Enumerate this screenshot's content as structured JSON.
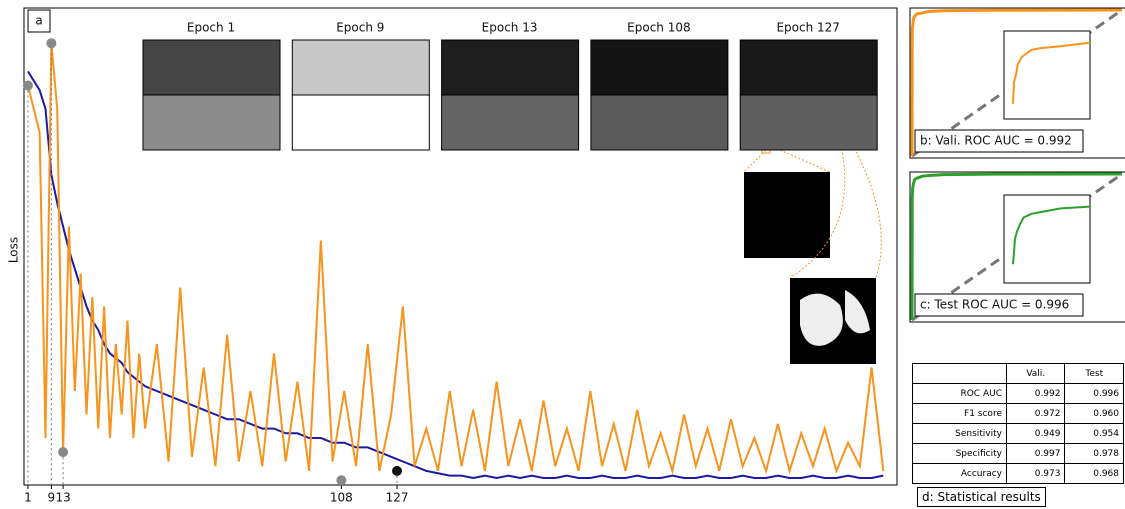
{
  "chart_data": [
    {
      "type": "line",
      "panel_label": "a",
      "y_label": "Loss",
      "x": [
        1,
        3,
        5,
        7,
        9,
        11,
        13,
        15,
        17,
        19,
        21,
        23,
        25,
        27,
        29,
        31,
        33,
        35,
        37,
        39,
        41,
        45,
        49,
        53,
        57,
        61,
        65,
        69,
        73,
        77,
        81,
        85,
        89,
        93,
        97,
        101,
        105,
        109,
        113,
        117,
        121,
        125,
        129,
        133,
        137,
        141,
        145,
        149,
        153,
        157,
        161,
        165,
        169,
        173,
        177,
        181,
        185,
        189,
        193,
        197,
        201,
        205,
        209,
        213,
        217,
        221,
        225,
        229,
        233,
        237,
        241,
        245,
        249,
        253,
        257,
        261,
        265,
        269,
        273,
        277,
        281,
        285,
        289,
        293
      ],
      "series": [
        {
          "color": "#1a1aa6",
          "values": [
            0.88,
            0.86,
            0.84,
            0.8,
            0.66,
            0.6,
            0.55,
            0.5,
            0.46,
            0.42,
            0.38,
            0.35,
            0.33,
            0.3,
            0.28,
            0.27,
            0.26,
            0.24,
            0.23,
            0.22,
            0.21,
            0.2,
            0.19,
            0.18,
            0.17,
            0.16,
            0.15,
            0.14,
            0.14,
            0.13,
            0.12,
            0.12,
            0.11,
            0.11,
            0.1,
            0.1,
            0.09,
            0.09,
            0.08,
            0.08,
            0.07,
            0.06,
            0.05,
            0.04,
            0.03,
            0.025,
            0.02,
            0.02,
            0.015,
            0.02,
            0.015,
            0.02,
            0.015,
            0.02,
            0.015,
            0.015,
            0.02,
            0.015,
            0.015,
            0.02,
            0.015,
            0.015,
            0.02,
            0.015,
            0.015,
            0.02,
            0.015,
            0.015,
            0.02,
            0.015,
            0.015,
            0.02,
            0.015,
            0.015,
            0.02,
            0.015,
            0.015,
            0.02,
            0.015,
            0.015,
            0.02,
            0.015,
            0.015,
            0.02
          ]
        },
        {
          "color": "#f7941d",
          "values": [
            0.85,
            0.8,
            0.75,
            0.1,
            0.94,
            0.8,
            0.07,
            0.55,
            0.2,
            0.45,
            0.15,
            0.4,
            0.12,
            0.38,
            0.1,
            0.3,
            0.15,
            0.35,
            0.1,
            0.28,
            0.12,
            0.3,
            0.05,
            0.42,
            0.06,
            0.25,
            0.04,
            0.32,
            0.05,
            0.2,
            0.04,
            0.28,
            0.05,
            0.22,
            0.03,
            0.52,
            0.05,
            0.2,
            0.04,
            0.3,
            0.03,
            0.15,
            0.38,
            0.04,
            0.12,
            0.03,
            0.2,
            0.04,
            0.16,
            0.03,
            0.22,
            0.04,
            0.14,
            0.03,
            0.18,
            0.04,
            0.12,
            0.03,
            0.2,
            0.04,
            0.13,
            0.03,
            0.16,
            0.04,
            0.11,
            0.03,
            0.15,
            0.04,
            0.12,
            0.03,
            0.14,
            0.04,
            0.1,
            0.03,
            0.13,
            0.03,
            0.11,
            0.04,
            0.12,
            0.03,
            0.09,
            0.04,
            0.25,
            0.03
          ]
        }
      ],
      "markers": [
        {
          "x": 1,
          "y": 0.85,
          "color": "#888888"
        },
        {
          "x": 9,
          "y": 0.94,
          "color": "#888888"
        },
        {
          "x": 13,
          "y": 0.07,
          "color": "#888888"
        },
        {
          "x": 108,
          "y": 0.01,
          "color": "#888888"
        },
        {
          "x": 127,
          "y": 0.03,
          "color": "#111111"
        }
      ],
      "xlim": [
        0,
        297
      ],
      "ylim": [
        0,
        1
      ],
      "xticks": [
        1,
        9,
        13,
        108,
        127
      ],
      "thumbnails": [
        "Epoch 1",
        "Epoch 9",
        "Epoch 13",
        "Epoch 108",
        "Epoch 127"
      ]
    },
    {
      "type": "roc",
      "title": "b: Vali. ROC AUC = 0.992",
      "color": "#f7941d",
      "x": [
        0,
        0.001,
        0.002,
        0.004,
        0.006,
        0.01,
        0.015,
        0.02,
        0.03,
        0.05,
        0.08,
        0.15,
        0.4,
        1
      ],
      "values": [
        0,
        0.82,
        0.88,
        0.9,
        0.93,
        0.95,
        0.96,
        0.97,
        0.975,
        0.98,
        0.99,
        0.995,
        0.998,
        1
      ],
      "xlim": [
        0,
        1
      ],
      "ylim": [
        0,
        1
      ],
      "inset_xlim": [
        0,
        0.08
      ],
      "inset_ylim": [
        0.8,
        1
      ]
    },
    {
      "type": "roc",
      "title": "c: Test ROC AUC = 0.996",
      "color": "#2ca02c",
      "x": [
        0,
        0.001,
        0.002,
        0.003,
        0.005,
        0.008,
        0.012,
        0.02,
        0.03,
        0.05,
        0.08,
        0.15,
        0.4,
        1
      ],
      "values": [
        0,
        0.83,
        0.86,
        0.9,
        0.92,
        0.94,
        0.96,
        0.97,
        0.975,
        0.985,
        0.99,
        0.996,
        0.999,
        1
      ],
      "xlim": [
        0,
        1
      ],
      "ylim": [
        0,
        1
      ],
      "inset_xlim": [
        0,
        0.08
      ],
      "inset_ylim": [
        0.8,
        1
      ]
    }
  ],
  "table": {
    "caption": "d: Statistical results",
    "columns": [
      "Vali.",
      "Test"
    ],
    "rows": [
      [
        "ROC AUC",
        "0.992",
        "0.996"
      ],
      [
        "F1 score",
        "0.972",
        "0.960"
      ],
      [
        "Sensitivity",
        "0.949",
        "0.954"
      ],
      [
        "Specificity",
        "0.997",
        "0.978"
      ],
      [
        "Accuracy",
        "0.973",
        "0.968"
      ]
    ]
  }
}
